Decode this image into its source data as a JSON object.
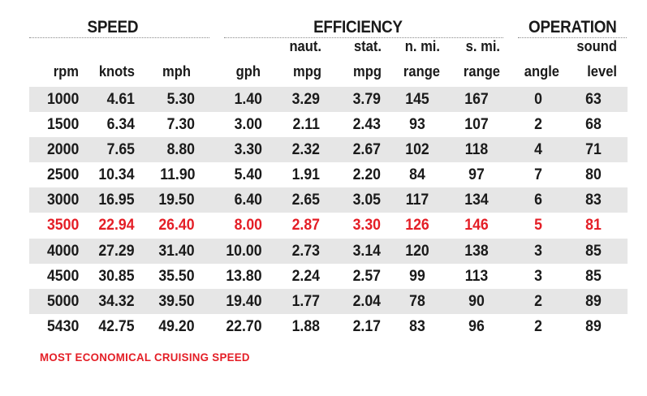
{
  "chart_data": {
    "type": "table",
    "groups": [
      "SPEED",
      "EFFICIENCY",
      "OPERATION"
    ],
    "columns": [
      {
        "key": "rpm",
        "top": "",
        "label": "rpm"
      },
      {
        "key": "knots",
        "top": "",
        "label": "knots"
      },
      {
        "key": "mph",
        "top": "",
        "label": "mph"
      },
      {
        "key": "gph",
        "top": "",
        "label": "gph"
      },
      {
        "key": "naut_mpg",
        "top": "naut.",
        "label": "mpg"
      },
      {
        "key": "stat_mpg",
        "top": "stat.",
        "label": "mpg"
      },
      {
        "key": "n_mi_range",
        "top": "n. mi.",
        "label": "range"
      },
      {
        "key": "s_mi_range",
        "top": "s. mi.",
        "label": "range"
      },
      {
        "key": "angle",
        "top": "",
        "label": "angle"
      },
      {
        "key": "sound_level",
        "top": "sound",
        "label": "level"
      }
    ],
    "rows": [
      [
        "1000",
        "4.61",
        "5.30",
        "1.40",
        "3.29",
        "3.79",
        "145",
        "167",
        "0",
        "63"
      ],
      [
        "1500",
        "6.34",
        "7.30",
        "3.00",
        "2.11",
        "2.43",
        "93",
        "107",
        "2",
        "68"
      ],
      [
        "2000",
        "7.65",
        "8.80",
        "3.30",
        "2.32",
        "2.67",
        "102",
        "118",
        "4",
        "71"
      ],
      [
        "2500",
        "10.34",
        "11.90",
        "5.40",
        "1.91",
        "2.20",
        "84",
        "97",
        "7",
        "80"
      ],
      [
        "3000",
        "16.95",
        "19.50",
        "6.40",
        "2.65",
        "3.05",
        "117",
        "134",
        "6",
        "83"
      ],
      [
        "3500",
        "22.94",
        "26.40",
        "8.00",
        "2.87",
        "3.30",
        "126",
        "146",
        "5",
        "81"
      ],
      [
        "4000",
        "27.29",
        "31.40",
        "10.00",
        "2.73",
        "3.14",
        "120",
        "138",
        "3",
        "85"
      ],
      [
        "4500",
        "30.85",
        "35.50",
        "13.80",
        "2.24",
        "2.57",
        "99",
        "113",
        "3",
        "85"
      ],
      [
        "5000",
        "34.32",
        "39.50",
        "19.40",
        "1.77",
        "2.04",
        "78",
        "90",
        "2",
        "89"
      ],
      [
        "5430",
        "42.75",
        "49.20",
        "22.70",
        "1.88",
        "2.17",
        "83",
        "96",
        "2",
        "89"
      ]
    ],
    "highlight_row_rpm": "3500",
    "highlight_color": "#e41e26",
    "shaded_row_color": "#e6e6e6"
  },
  "footnote": "MOST ECONOMICAL CRUISING SPEED"
}
